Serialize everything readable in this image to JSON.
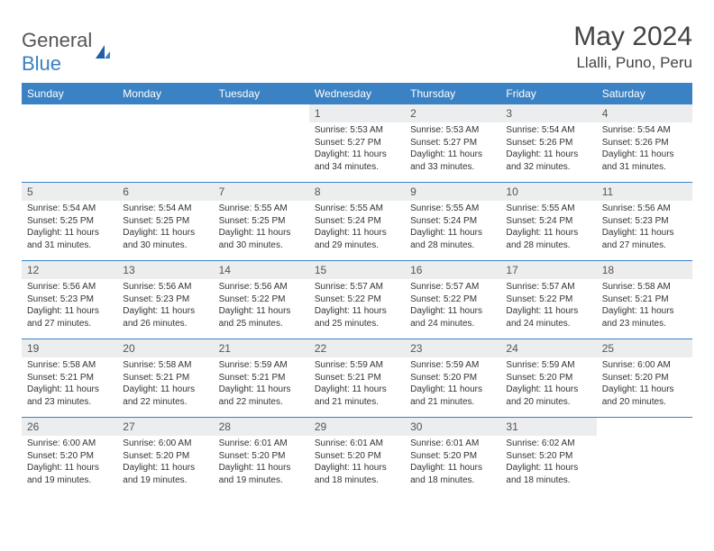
{
  "brand": {
    "part1": "General",
    "part2": "Blue"
  },
  "title": "May 2024",
  "location": "Llalli, Puno, Peru",
  "colors": {
    "header_bg": "#3b82c4",
    "daynum_bg": "#ecedee",
    "rule": "#3b82c4",
    "text": "#333333",
    "title": "#444444"
  },
  "day_names": [
    "Sunday",
    "Monday",
    "Tuesday",
    "Wednesday",
    "Thursday",
    "Friday",
    "Saturday"
  ],
  "weeks": [
    [
      {
        "n": "",
        "sr": "",
        "ss": "",
        "dl": ""
      },
      {
        "n": "",
        "sr": "",
        "ss": "",
        "dl": ""
      },
      {
        "n": "",
        "sr": "",
        "ss": "",
        "dl": ""
      },
      {
        "n": "1",
        "sr": "Sunrise: 5:53 AM",
        "ss": "Sunset: 5:27 PM",
        "dl": "Daylight: 11 hours and 34 minutes."
      },
      {
        "n": "2",
        "sr": "Sunrise: 5:53 AM",
        "ss": "Sunset: 5:27 PM",
        "dl": "Daylight: 11 hours and 33 minutes."
      },
      {
        "n": "3",
        "sr": "Sunrise: 5:54 AM",
        "ss": "Sunset: 5:26 PM",
        "dl": "Daylight: 11 hours and 32 minutes."
      },
      {
        "n": "4",
        "sr": "Sunrise: 5:54 AM",
        "ss": "Sunset: 5:26 PM",
        "dl": "Daylight: 11 hours and 31 minutes."
      }
    ],
    [
      {
        "n": "5",
        "sr": "Sunrise: 5:54 AM",
        "ss": "Sunset: 5:25 PM",
        "dl": "Daylight: 11 hours and 31 minutes."
      },
      {
        "n": "6",
        "sr": "Sunrise: 5:54 AM",
        "ss": "Sunset: 5:25 PM",
        "dl": "Daylight: 11 hours and 30 minutes."
      },
      {
        "n": "7",
        "sr": "Sunrise: 5:55 AM",
        "ss": "Sunset: 5:25 PM",
        "dl": "Daylight: 11 hours and 30 minutes."
      },
      {
        "n": "8",
        "sr": "Sunrise: 5:55 AM",
        "ss": "Sunset: 5:24 PM",
        "dl": "Daylight: 11 hours and 29 minutes."
      },
      {
        "n": "9",
        "sr": "Sunrise: 5:55 AM",
        "ss": "Sunset: 5:24 PM",
        "dl": "Daylight: 11 hours and 28 minutes."
      },
      {
        "n": "10",
        "sr": "Sunrise: 5:55 AM",
        "ss": "Sunset: 5:24 PM",
        "dl": "Daylight: 11 hours and 28 minutes."
      },
      {
        "n": "11",
        "sr": "Sunrise: 5:56 AM",
        "ss": "Sunset: 5:23 PM",
        "dl": "Daylight: 11 hours and 27 minutes."
      }
    ],
    [
      {
        "n": "12",
        "sr": "Sunrise: 5:56 AM",
        "ss": "Sunset: 5:23 PM",
        "dl": "Daylight: 11 hours and 27 minutes."
      },
      {
        "n": "13",
        "sr": "Sunrise: 5:56 AM",
        "ss": "Sunset: 5:23 PM",
        "dl": "Daylight: 11 hours and 26 minutes."
      },
      {
        "n": "14",
        "sr": "Sunrise: 5:56 AM",
        "ss": "Sunset: 5:22 PM",
        "dl": "Daylight: 11 hours and 25 minutes."
      },
      {
        "n": "15",
        "sr": "Sunrise: 5:57 AM",
        "ss": "Sunset: 5:22 PM",
        "dl": "Daylight: 11 hours and 25 minutes."
      },
      {
        "n": "16",
        "sr": "Sunrise: 5:57 AM",
        "ss": "Sunset: 5:22 PM",
        "dl": "Daylight: 11 hours and 24 minutes."
      },
      {
        "n": "17",
        "sr": "Sunrise: 5:57 AM",
        "ss": "Sunset: 5:22 PM",
        "dl": "Daylight: 11 hours and 24 minutes."
      },
      {
        "n": "18",
        "sr": "Sunrise: 5:58 AM",
        "ss": "Sunset: 5:21 PM",
        "dl": "Daylight: 11 hours and 23 minutes."
      }
    ],
    [
      {
        "n": "19",
        "sr": "Sunrise: 5:58 AM",
        "ss": "Sunset: 5:21 PM",
        "dl": "Daylight: 11 hours and 23 minutes."
      },
      {
        "n": "20",
        "sr": "Sunrise: 5:58 AM",
        "ss": "Sunset: 5:21 PM",
        "dl": "Daylight: 11 hours and 22 minutes."
      },
      {
        "n": "21",
        "sr": "Sunrise: 5:59 AM",
        "ss": "Sunset: 5:21 PM",
        "dl": "Daylight: 11 hours and 22 minutes."
      },
      {
        "n": "22",
        "sr": "Sunrise: 5:59 AM",
        "ss": "Sunset: 5:21 PM",
        "dl": "Daylight: 11 hours and 21 minutes."
      },
      {
        "n": "23",
        "sr": "Sunrise: 5:59 AM",
        "ss": "Sunset: 5:20 PM",
        "dl": "Daylight: 11 hours and 21 minutes."
      },
      {
        "n": "24",
        "sr": "Sunrise: 5:59 AM",
        "ss": "Sunset: 5:20 PM",
        "dl": "Daylight: 11 hours and 20 minutes."
      },
      {
        "n": "25",
        "sr": "Sunrise: 6:00 AM",
        "ss": "Sunset: 5:20 PM",
        "dl": "Daylight: 11 hours and 20 minutes."
      }
    ],
    [
      {
        "n": "26",
        "sr": "Sunrise: 6:00 AM",
        "ss": "Sunset: 5:20 PM",
        "dl": "Daylight: 11 hours and 19 minutes."
      },
      {
        "n": "27",
        "sr": "Sunrise: 6:00 AM",
        "ss": "Sunset: 5:20 PM",
        "dl": "Daylight: 11 hours and 19 minutes."
      },
      {
        "n": "28",
        "sr": "Sunrise: 6:01 AM",
        "ss": "Sunset: 5:20 PM",
        "dl": "Daylight: 11 hours and 19 minutes."
      },
      {
        "n": "29",
        "sr": "Sunrise: 6:01 AM",
        "ss": "Sunset: 5:20 PM",
        "dl": "Daylight: 11 hours and 18 minutes."
      },
      {
        "n": "30",
        "sr": "Sunrise: 6:01 AM",
        "ss": "Sunset: 5:20 PM",
        "dl": "Daylight: 11 hours and 18 minutes."
      },
      {
        "n": "31",
        "sr": "Sunrise: 6:02 AM",
        "ss": "Sunset: 5:20 PM",
        "dl": "Daylight: 11 hours and 18 minutes."
      },
      {
        "n": "",
        "sr": "",
        "ss": "",
        "dl": ""
      }
    ]
  ]
}
